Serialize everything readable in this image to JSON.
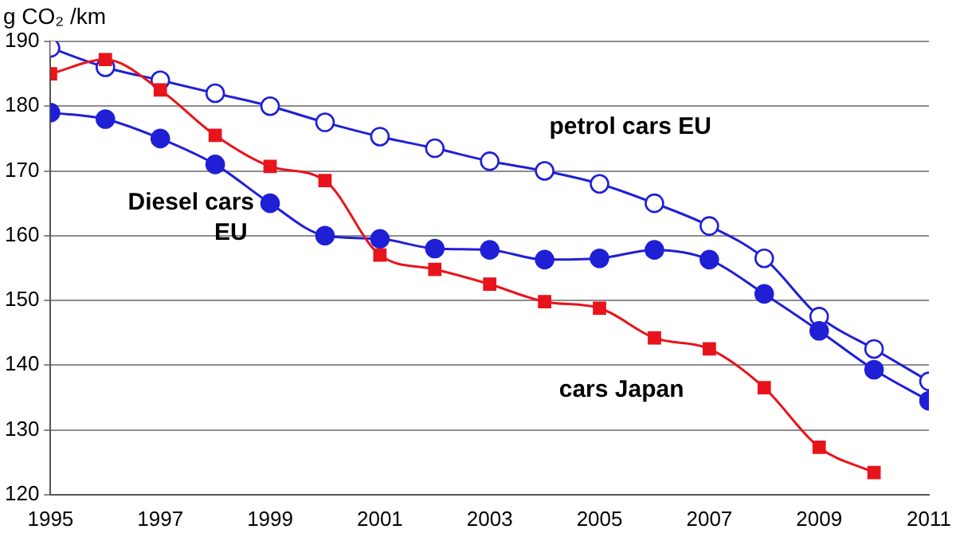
{
  "chart_data": {
    "type": "line",
    "ylabel": "g CO₂ /km",
    "x": [
      1995,
      1996,
      1997,
      1998,
      1999,
      2000,
      2001,
      2002,
      2003,
      2004,
      2005,
      2006,
      2007,
      2008,
      2009,
      2010,
      2011
    ],
    "series": [
      {
        "name": "petrol cars EU",
        "color": "#1f1fd6",
        "marker": "circle",
        "values": [
          189,
          186,
          184,
          182,
          180,
          177.5,
          175.3,
          173.5,
          171.5,
          170,
          168,
          165,
          161.5,
          156.5,
          147.5,
          142.5,
          137.5
        ]
      },
      {
        "name": "Diesel cars EU",
        "color": "#1f1fd6",
        "marker": "circle",
        "values": [
          179,
          178,
          175,
          171,
          165,
          160,
          159.5,
          158,
          157.8,
          156.3,
          156.5,
          157.8,
          156.3,
          151,
          145.3,
          139.3,
          134.5
        ]
      },
      {
        "name": "cars Japan",
        "color": "#e8141b",
        "marker": "square",
        "values": [
          185,
          187.2,
          182.5,
          175.5,
          170.7,
          168.5,
          157,
          154.8,
          152.5,
          149.8,
          148.8,
          144.2,
          142.5,
          136.5,
          127.3,
          123.4,
          null
        ]
      }
    ],
    "xlim": [
      1995,
      2011
    ],
    "xticks": [
      1995,
      1997,
      1999,
      2001,
      2003,
      2005,
      2007,
      2009,
      2011
    ],
    "ylim": [
      120,
      190
    ],
    "yticks": [
      120,
      130,
      140,
      150,
      160,
      170,
      180,
      190
    ],
    "grid": "y",
    "legend": false,
    "line_style": "solid"
  }
}
